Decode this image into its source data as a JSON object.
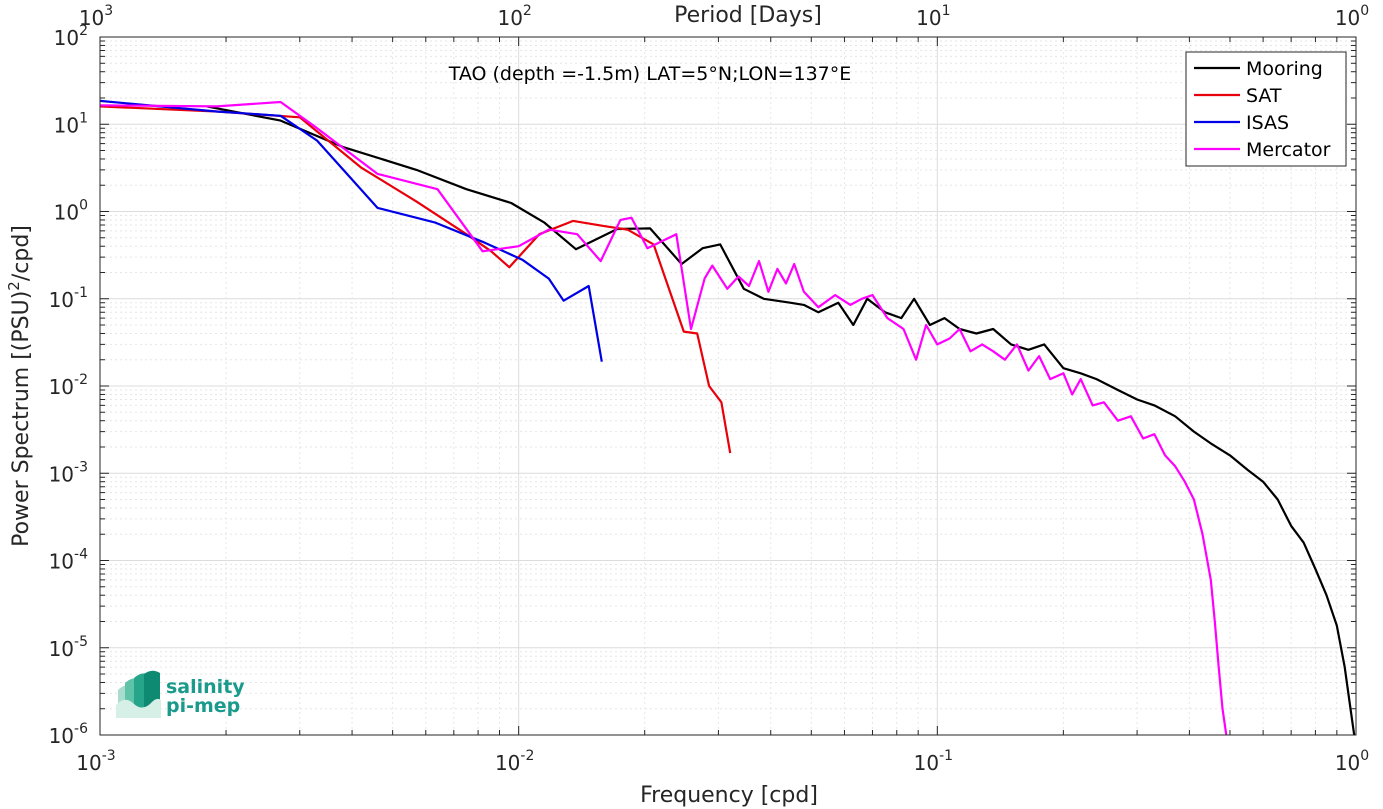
{
  "chart_data": {
    "type": "line",
    "title": "TAO (depth =-1.5m) LAT=5°N;LON=137°E",
    "xlabel": "Frequency [cpd]",
    "ylabel": "Power Spectrum [(PSU)^2/cpd]",
    "ylabel_parts": {
      "pre": "Power Spectrum [(PSU)",
      "sup": "2",
      "post": "/cpd]"
    },
    "top_xlabel": "Period [Days]",
    "x_scale": "log",
    "y_scale": "log",
    "xlim": [
      0.001,
      1
    ],
    "ylim": [
      1e-06,
      100
    ],
    "grid": true,
    "legend_position": "top-right",
    "x_ticks": [
      {
        "value": 0.001,
        "base": "10",
        "exp": "-3"
      },
      {
        "value": 0.01,
        "base": "10",
        "exp": "-2"
      },
      {
        "value": 0.1,
        "base": "10",
        "exp": "-1"
      },
      {
        "value": 1,
        "base": "10",
        "exp": "0"
      }
    ],
    "y_ticks": [
      {
        "value": 100,
        "base": "10",
        "exp": "2"
      },
      {
        "value": 10,
        "base": "10",
        "exp": "1"
      },
      {
        "value": 1,
        "base": "10",
        "exp": "0"
      },
      {
        "value": 0.1,
        "base": "10",
        "exp": "-1"
      },
      {
        "value": 0.01,
        "base": "10",
        "exp": "-2"
      },
      {
        "value": 0.001,
        "base": "10",
        "exp": "-3"
      },
      {
        "value": 0.0001,
        "base": "10",
        "exp": "-4"
      },
      {
        "value": 1e-05,
        "base": "10",
        "exp": "-5"
      },
      {
        "value": 1e-06,
        "base": "10",
        "exp": "-6"
      }
    ],
    "top_ticks": [
      {
        "value": 1000,
        "base": "10",
        "exp": "3"
      },
      {
        "value": 100,
        "base": "10",
        "exp": "2"
      },
      {
        "value": 10,
        "base": "10",
        "exp": "1"
      },
      {
        "value": 1,
        "base": "10",
        "exp": "0"
      }
    ],
    "series": [
      {
        "name": "Mooring",
        "color": "#000000",
        "points": [
          [
            0.0018,
            16
          ],
          [
            0.0027,
            11
          ],
          [
            0.0038,
            5.5
          ],
          [
            0.0057,
            3.0
          ],
          [
            0.0075,
            1.8
          ],
          [
            0.0096,
            1.25
          ],
          [
            0.0115,
            0.75
          ],
          [
            0.0137,
            0.37
          ],
          [
            0.0172,
            0.63
          ],
          [
            0.0206,
            0.64
          ],
          [
            0.0245,
            0.25
          ],
          [
            0.0275,
            0.38
          ],
          [
            0.0303,
            0.42
          ],
          [
            0.0345,
            0.13
          ],
          [
            0.0385,
            0.1
          ],
          [
            0.0445,
            0.09
          ],
          [
            0.048,
            0.085
          ],
          [
            0.052,
            0.07
          ],
          [
            0.058,
            0.09
          ],
          [
            0.063,
            0.05
          ],
          [
            0.068,
            0.1
          ],
          [
            0.075,
            0.07
          ],
          [
            0.082,
            0.06
          ],
          [
            0.088,
            0.1
          ],
          [
            0.096,
            0.05
          ],
          [
            0.104,
            0.06
          ],
          [
            0.113,
            0.045
          ],
          [
            0.124,
            0.04
          ],
          [
            0.136,
            0.045
          ],
          [
            0.15,
            0.03
          ],
          [
            0.165,
            0.026
          ],
          [
            0.18,
            0.03
          ],
          [
            0.2,
            0.016
          ],
          [
            0.22,
            0.014
          ],
          [
            0.24,
            0.012
          ],
          [
            0.27,
            0.009
          ],
          [
            0.3,
            0.007
          ],
          [
            0.33,
            0.006
          ],
          [
            0.37,
            0.0045
          ],
          [
            0.41,
            0.003
          ],
          [
            0.45,
            0.0022
          ],
          [
            0.5,
            0.0016
          ],
          [
            0.55,
            0.0011
          ],
          [
            0.6,
            0.0008
          ],
          [
            0.65,
            0.0005
          ],
          [
            0.7,
            0.00025
          ],
          [
            0.75,
            0.00016
          ],
          [
            0.8,
            8e-05
          ],
          [
            0.85,
            4e-05
          ],
          [
            0.9,
            1.8e-05
          ],
          [
            0.94,
            6e-06
          ],
          [
            0.97,
            2e-06
          ],
          [
            0.99,
            1e-06
          ]
        ]
      },
      {
        "name": "SAT",
        "color": "#e8000b",
        "points": [
          [
            0.001,
            16
          ],
          [
            0.0019,
            14
          ],
          [
            0.003,
            12
          ],
          [
            0.0042,
            3.2
          ],
          [
            0.0057,
            1.3
          ],
          [
            0.0075,
            0.55
          ],
          [
            0.0086,
            0.35
          ],
          [
            0.0095,
            0.23
          ],
          [
            0.0112,
            0.55
          ],
          [
            0.0135,
            0.78
          ],
          [
            0.016,
            0.68
          ],
          [
            0.0182,
            0.62
          ],
          [
            0.021,
            0.42
          ],
          [
            0.0248,
            0.042
          ],
          [
            0.0267,
            0.04
          ],
          [
            0.0285,
            0.01
          ],
          [
            0.0305,
            0.0065
          ],
          [
            0.032,
            0.0017
          ]
        ]
      },
      {
        "name": "ISAS",
        "color": "#0000e6",
        "points": [
          [
            0.001,
            18.5
          ],
          [
            0.0019,
            14
          ],
          [
            0.0027,
            12.5
          ],
          [
            0.0033,
            6.5
          ],
          [
            0.0046,
            1.1
          ],
          [
            0.0063,
            0.75
          ],
          [
            0.0082,
            0.45
          ],
          [
            0.0102,
            0.28
          ],
          [
            0.0118,
            0.17
          ],
          [
            0.0128,
            0.095
          ],
          [
            0.0147,
            0.14
          ],
          [
            0.0158,
            0.019
          ]
        ]
      },
      {
        "name": "Mercator",
        "color": "#ff00ff",
        "points": [
          [
            0.001,
            16.5
          ],
          [
            0.0019,
            16
          ],
          [
            0.0027,
            18
          ],
          [
            0.0033,
            9
          ],
          [
            0.0046,
            2.7
          ],
          [
            0.0064,
            1.8
          ],
          [
            0.0082,
            0.35
          ],
          [
            0.01,
            0.4
          ],
          [
            0.0118,
            0.62
          ],
          [
            0.0138,
            0.55
          ],
          [
            0.0157,
            0.27
          ],
          [
            0.0175,
            0.8
          ],
          [
            0.0186,
            0.85
          ],
          [
            0.0203,
            0.38
          ],
          [
            0.0238,
            0.55
          ],
          [
            0.0258,
            0.045
          ],
          [
            0.0278,
            0.17
          ],
          [
            0.029,
            0.24
          ],
          [
            0.0315,
            0.13
          ],
          [
            0.0335,
            0.18
          ],
          [
            0.0355,
            0.14
          ],
          [
            0.0375,
            0.27
          ],
          [
            0.0395,
            0.12
          ],
          [
            0.0415,
            0.22
          ],
          [
            0.0435,
            0.15
          ],
          [
            0.0455,
            0.25
          ],
          [
            0.048,
            0.12
          ],
          [
            0.052,
            0.08
          ],
          [
            0.057,
            0.11
          ],
          [
            0.062,
            0.085
          ],
          [
            0.066,
            0.1
          ],
          [
            0.07,
            0.11
          ],
          [
            0.076,
            0.06
          ],
          [
            0.083,
            0.045
          ],
          [
            0.089,
            0.02
          ],
          [
            0.094,
            0.05
          ],
          [
            0.1,
            0.03
          ],
          [
            0.107,
            0.035
          ],
          [
            0.113,
            0.045
          ],
          [
            0.12,
            0.025
          ],
          [
            0.128,
            0.03
          ],
          [
            0.136,
            0.025
          ],
          [
            0.145,
            0.02
          ],
          [
            0.155,
            0.03
          ],
          [
            0.165,
            0.015
          ],
          [
            0.175,
            0.022
          ],
          [
            0.186,
            0.012
          ],
          [
            0.2,
            0.014
          ],
          [
            0.21,
            0.008
          ],
          [
            0.22,
            0.012
          ],
          [
            0.235,
            0.006
          ],
          [
            0.25,
            0.0065
          ],
          [
            0.27,
            0.004
          ],
          [
            0.29,
            0.0045
          ],
          [
            0.31,
            0.0025
          ],
          [
            0.33,
            0.0028
          ],
          [
            0.35,
            0.0016
          ],
          [
            0.37,
            0.0012
          ],
          [
            0.39,
            0.0008
          ],
          [
            0.41,
            0.0005
          ],
          [
            0.43,
            0.0002
          ],
          [
            0.45,
            6e-05
          ],
          [
            0.46,
            2e-05
          ],
          [
            0.47,
            6e-06
          ],
          [
            0.48,
            2e-06
          ],
          [
            0.49,
            1e-06
          ]
        ]
      }
    ]
  },
  "logo": {
    "line1": "salinity",
    "line2": "pi-mep"
  }
}
